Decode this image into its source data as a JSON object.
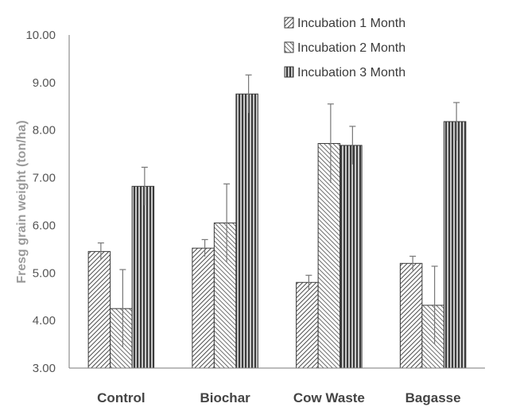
{
  "chart_data": {
    "type": "bar",
    "title": "",
    "xlabel": "",
    "ylabel": "Fresg grain weight (ton/ha)",
    "ylim": [
      3.0,
      10.0
    ],
    "yticks": [
      "3.00",
      "4.00",
      "5.00",
      "6.00",
      "7.00",
      "8.00",
      "9.00",
      "10.00"
    ],
    "grid": false,
    "legend_position": "top-right",
    "categories": [
      "Control",
      "Biochar",
      "Cow Waste",
      "Bagasse"
    ],
    "series": [
      {
        "name": "Incubation 1 Month",
        "pattern": "diagonal-right",
        "values": [
          5.45,
          5.52,
          4.8,
          5.2
        ],
        "errors": [
          0.18,
          0.18,
          0.15,
          0.15
        ]
      },
      {
        "name": "Incubation 2 Month",
        "pattern": "diagonal-left",
        "values": [
          4.25,
          6.05,
          7.72,
          4.32
        ],
        "errors": [
          0.82,
          0.82,
          0.83,
          0.82
        ]
      },
      {
        "name": "Incubation 3 Month",
        "pattern": "vertical",
        "values": [
          6.82,
          8.76,
          7.68,
          8.18
        ],
        "errors": [
          0.4,
          0.4,
          0.4,
          0.4
        ]
      }
    ]
  }
}
